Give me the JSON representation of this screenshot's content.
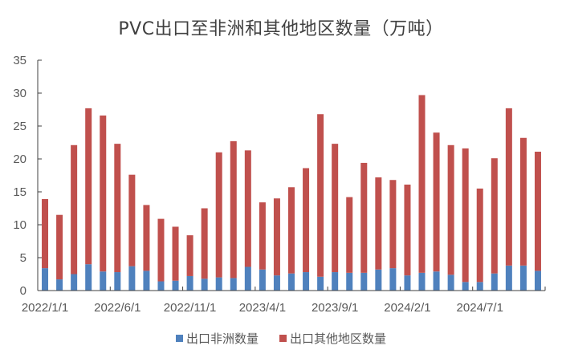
{
  "title": "PVC出口至非洲和其他地区数量（万吨）",
  "colors": {
    "africa": "#4f81bd",
    "other": "#c0504d",
    "axis": "#404040"
  },
  "legend": [
    {
      "label": "出口非洲数量",
      "color": "#4f81bd"
    },
    {
      "label": "出口其他地区数量",
      "color": "#c0504d"
    }
  ],
  "chart_data": {
    "type": "bar",
    "stacked": true,
    "title": "PVC出口至非洲和其他地区数量（万吨）",
    "xlabel": "",
    "ylabel": "",
    "ylim": [
      0,
      35
    ],
    "yticks": [
      0,
      5,
      10,
      15,
      20,
      25,
      30,
      35
    ],
    "grid": false,
    "legend_position": "bottom",
    "x_tick_labels": [
      "2022/1/1",
      "2022/6/1",
      "2022/11/1",
      "2023/4/1",
      "2023/9/1",
      "2024/2/1",
      "2024/7/1"
    ],
    "categories": [
      "2022/1/1",
      "2022/2/1",
      "2022/3/1",
      "2022/4/1",
      "2022/5/1",
      "2022/6/1",
      "2022/7/1",
      "2022/8/1",
      "2022/9/1",
      "2022/10/1",
      "2022/11/1",
      "2022/12/1",
      "2023/1/1",
      "2023/2/1",
      "2023/3/1",
      "2023/4/1",
      "2023/5/1",
      "2023/6/1",
      "2023/7/1",
      "2023/8/1",
      "2023/9/1",
      "2023/10/1",
      "2023/11/1",
      "2023/12/1",
      "2024/1/1",
      "2024/2/1",
      "2024/3/1",
      "2024/4/1",
      "2024/5/1",
      "2024/6/1",
      "2024/7/1",
      "2024/8/1",
      "2024/9/1",
      "2024/10/1",
      "2024/11/1"
    ],
    "series": [
      {
        "name": "出口非洲数量",
        "color": "#4f81bd",
        "values": [
          3.4,
          1.7,
          2.5,
          4.0,
          2.9,
          2.8,
          3.7,
          3.0,
          1.4,
          1.5,
          2.2,
          1.8,
          2.0,
          1.9,
          3.6,
          3.2,
          2.3,
          2.6,
          2.8,
          2.1,
          2.8,
          2.7,
          2.7,
          3.2,
          3.4,
          2.3,
          2.7,
          2.9,
          2.4,
          1.3,
          1.3,
          2.6,
          3.8,
          3.8,
          3.0
        ]
      },
      {
        "name": "出口其他地区数量",
        "color": "#c0504d",
        "values": [
          10.5,
          9.8,
          19.6,
          23.7,
          23.7,
          19.5,
          13.9,
          10.0,
          9.5,
          8.2,
          6.2,
          10.7,
          19.0,
          20.8,
          17.7,
          10.2,
          11.7,
          13.1,
          15.8,
          24.7,
          19.5,
          11.5,
          16.7,
          14.0,
          13.4,
          13.8,
          27.0,
          21.1,
          19.7,
          20.3,
          14.2,
          17.5,
          23.9,
          19.4,
          18.1
        ]
      }
    ]
  }
}
